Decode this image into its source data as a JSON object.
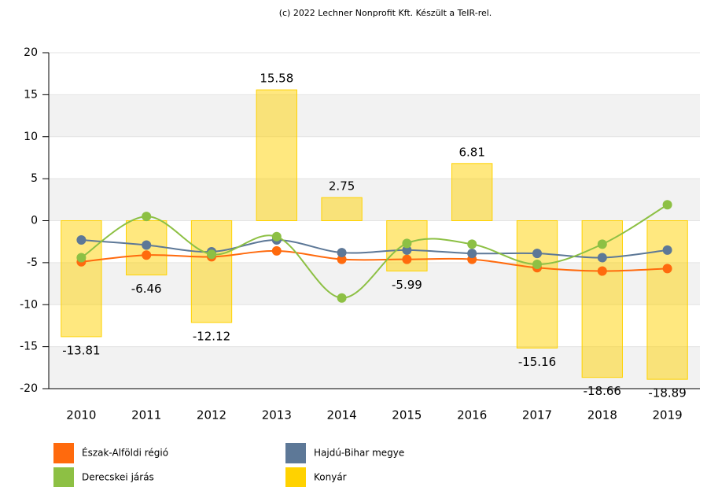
{
  "chart_data": {
    "type": "bar",
    "title": "(c) 2022 Lechner Nonprofit Kft. Készült a TeIR-rel.",
    "categories": [
      "2010",
      "2011",
      "2012",
      "2013",
      "2014",
      "2015",
      "2016",
      "2017",
      "2018",
      "2019"
    ],
    "series": [
      {
        "name": "Észak-Alföldi régió",
        "type": "line",
        "color": "#ff6a0d",
        "values": [
          -4.9,
          -4.1,
          -4.3,
          -3.6,
          -4.6,
          -4.6,
          -4.6,
          -5.6,
          -6.0,
          -5.7
        ]
      },
      {
        "name": "Hajdú-Bihar megye",
        "type": "line",
        "color": "#5d7897",
        "values": [
          -2.3,
          -2.9,
          -3.7,
          -2.3,
          -3.8,
          -3.5,
          -3.9,
          -3.9,
          -4.4,
          -3.5
        ]
      },
      {
        "name": "Derecskei járás",
        "type": "line",
        "color": "#8dc044",
        "values": [
          -4.4,
          0.5,
          -4.0,
          -1.9,
          -9.2,
          -2.7,
          -2.8,
          -5.2,
          -2.8,
          1.9
        ]
      },
      {
        "name": "Konyár",
        "type": "bar",
        "color": "#ffd200",
        "values": [
          -13.81,
          -6.46,
          -12.12,
          15.58,
          2.75,
          -5.99,
          6.81,
          -15.16,
          -18.66,
          -18.89
        ]
      }
    ],
    "ylim": [
      -20,
      20
    ],
    "yticks": [
      -20,
      -15,
      -10,
      -5,
      0,
      5,
      10,
      15,
      20
    ],
    "grid": true
  }
}
